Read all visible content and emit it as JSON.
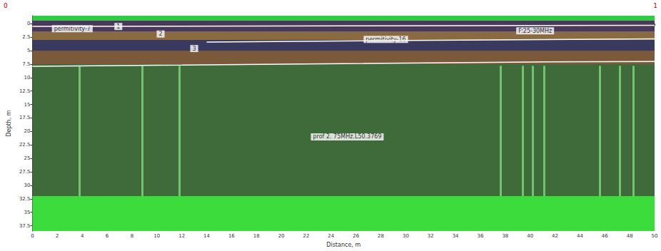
{
  "chart_data": {
    "type": "radargram",
    "x_label": "Distance, m",
    "y_label": "Depth, m",
    "corner_labels": [
      "0",
      "1"
    ],
    "grid": false,
    "xlim": [
      0,
      50
    ],
    "xticks": [
      0,
      2,
      4,
      6,
      8,
      10,
      12,
      14,
      16,
      18,
      20,
      22,
      24,
      26,
      28,
      30,
      32,
      34,
      36,
      38,
      40,
      42,
      44,
      46,
      48,
      50
    ],
    "ylim": [
      -1.5,
      38.5
    ],
    "yticks": [
      0,
      2.5,
      5,
      7.5,
      10,
      12.5,
      15,
      17.5,
      20,
      22.5,
      25,
      27.5,
      30,
      32.5,
      35,
      37.5
    ],
    "zones": [
      {
        "from": -1.5,
        "to": -0.6,
        "color": "#2ecc40"
      },
      {
        "from": -0.6,
        "to": 1.5,
        "color": "#4a3a5a"
      },
      {
        "from": 1.5,
        "to": 3,
        "color": "#8a6a40"
      },
      {
        "from": 3,
        "to": 5,
        "color": "#3a3a60"
      },
      {
        "from": 5,
        "to": 7.5,
        "color": "#7a5a3a"
      },
      {
        "from": 7.5,
        "to": 32,
        "color": "#3f6a3a"
      },
      {
        "from": 32,
        "to": 38.5,
        "color": "#3ddc3d"
      }
    ],
    "boundaries": [
      {
        "color": "#ffffff",
        "points": [
          [
            0,
            0.5
          ],
          [
            25,
            0.4
          ],
          [
            50,
            0.3
          ]
        ]
      },
      {
        "color": "#ffffff",
        "points": [
          [
            14,
            3.4
          ],
          [
            30,
            3.1
          ],
          [
            50,
            2.8
          ]
        ]
      },
      {
        "color": "#ffffff",
        "points": [
          [
            0,
            7.9
          ],
          [
            10,
            7.7
          ],
          [
            25,
            7.4
          ],
          [
            40,
            7.1
          ],
          [
            50,
            7.0
          ]
        ]
      }
    ],
    "traces": {
      "x": [
        3.8,
        8.8,
        11.8,
        37.6,
        39.4,
        40.2,
        41.1,
        45.6,
        47.2,
        48.3
      ],
      "from": 7.8,
      "to": 32,
      "color": "#7fd87f"
    },
    "annotations": [
      {
        "text": "permitivity-7",
        "x": 3.2,
        "y": 0.9
      },
      {
        "text": "1",
        "x": 6.9,
        "y": 0.5
      },
      {
        "text": "2",
        "x": 10.3,
        "y": 1.9
      },
      {
        "text": "3",
        "x": 13,
        "y": 4.6
      },
      {
        "text": "permitivity-16",
        "x": 28.4,
        "y": 2.9
      },
      {
        "text": "F:25-30MHz",
        "x": 40.4,
        "y": 1.3
      },
      {
        "text": "prof 2. 75MHz.L50.3769",
        "x": 25.3,
        "y": 21
      }
    ]
  }
}
